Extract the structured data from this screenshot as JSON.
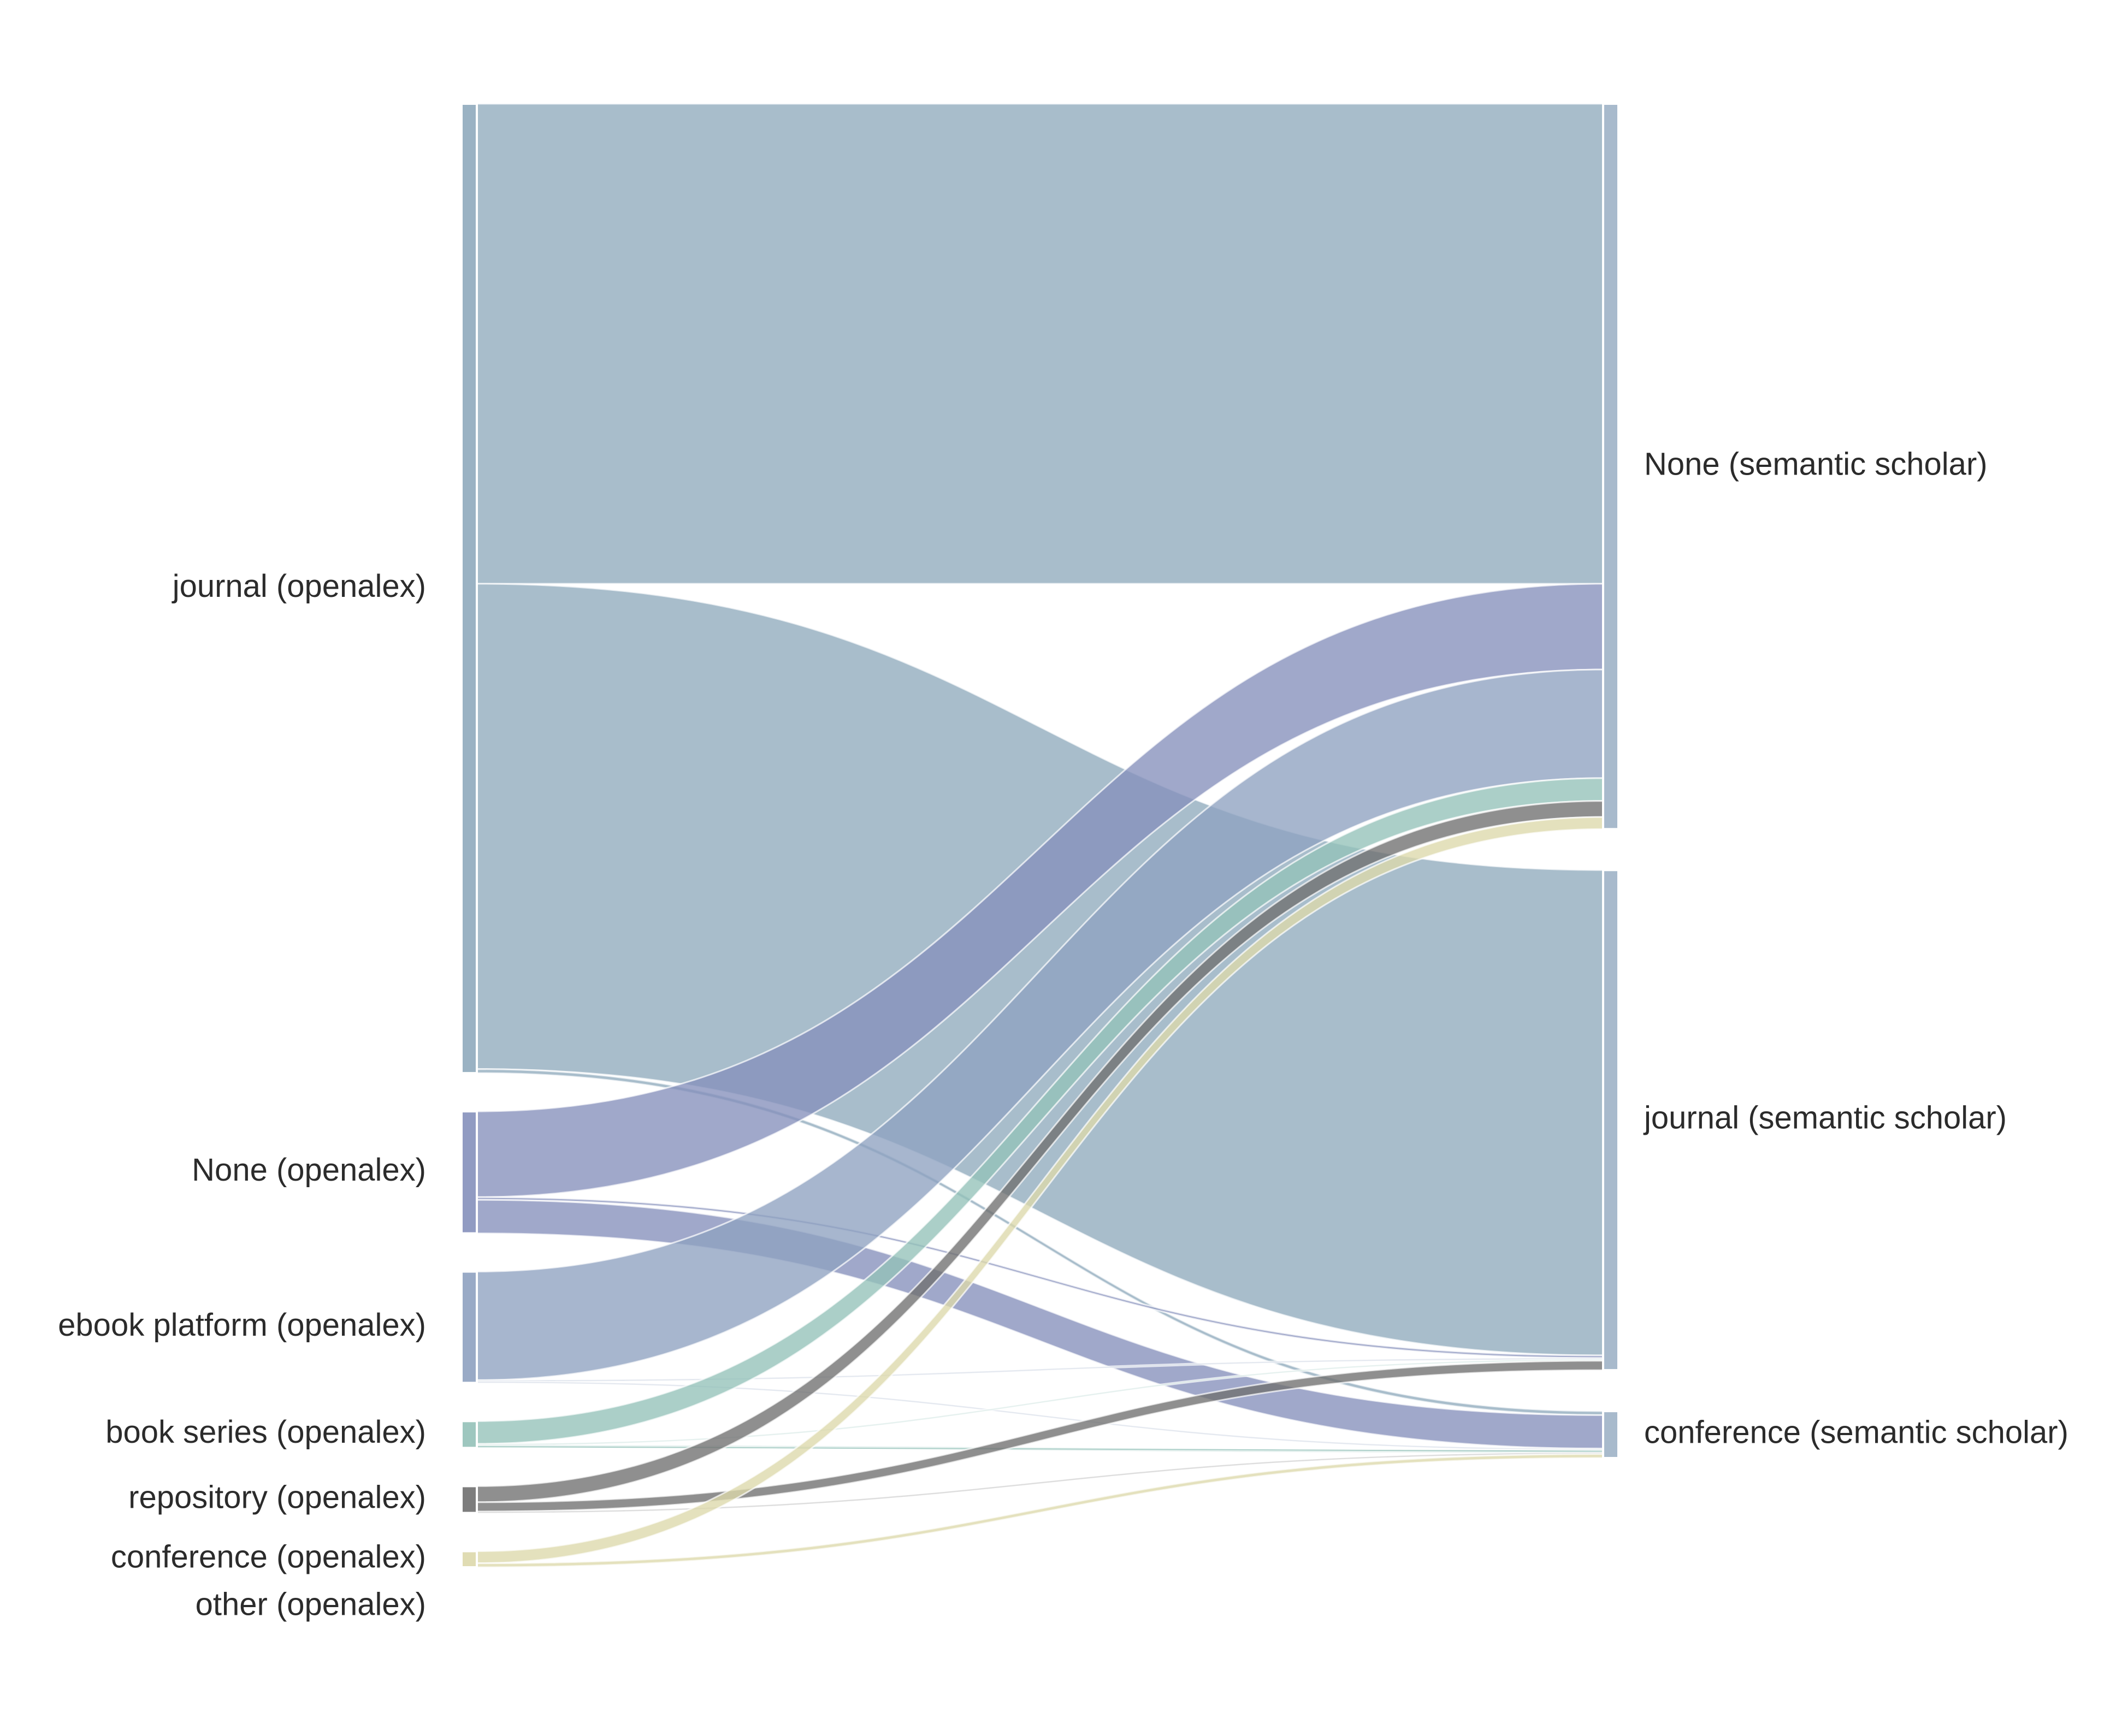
{
  "diagram": {
    "type": "sankey",
    "left_nodes": [
      {
        "id": "journal_oa",
        "label": "journal (openalex)"
      },
      {
        "id": "none_oa",
        "label": "None (openalex)"
      },
      {
        "id": "ebook_oa",
        "label": "ebook platform (openalex)"
      },
      {
        "id": "bookseries_oa",
        "label": "book series (openalex)"
      },
      {
        "id": "repository_oa",
        "label": "repository (openalex)"
      },
      {
        "id": "conference_oa",
        "label": "conference (openalex)"
      },
      {
        "id": "other_oa",
        "label": "other (openalex)"
      }
    ],
    "right_nodes": [
      {
        "id": "none_ss",
        "label": "None (semantic scholar)"
      },
      {
        "id": "journal_ss",
        "label": "journal (semantic scholar)"
      },
      {
        "id": "conference_ss",
        "label": "conference (semantic scholar)"
      }
    ],
    "colors": {
      "journal_oa": "#8faabc",
      "none_oa": "#8590bb",
      "ebook_oa": "#8ea1c0",
      "bookseries_oa": "#93c1b8",
      "repository_oa": "#6f6f6f",
      "conference_oa": "#ddd8ab",
      "other_oa": "#cdd6df"
    },
    "flows": [
      {
        "source": "journal_oa",
        "target": "none_ss",
        "value": 358
      },
      {
        "source": "journal_oa",
        "target": "journal_ss",
        "value": 362
      },
      {
        "source": "journal_oa",
        "target": "conference_ss",
        "value": 3
      },
      {
        "source": "none_oa",
        "target": "none_ss",
        "value": 64
      },
      {
        "source": "none_oa",
        "target": "journal_ss",
        "value": 2
      },
      {
        "source": "none_oa",
        "target": "conference_ss",
        "value": 25
      },
      {
        "source": "ebook_oa",
        "target": "none_ss",
        "value": 81
      },
      {
        "source": "ebook_oa",
        "target": "journal_ss",
        "value": 1
      },
      {
        "source": "ebook_oa",
        "target": "conference_ss",
        "value": 1
      },
      {
        "source": "bookseries_oa",
        "target": "none_ss",
        "value": 17
      },
      {
        "source": "bookseries_oa",
        "target": "journal_ss",
        "value": 1
      },
      {
        "source": "bookseries_oa",
        "target": "conference_ss",
        "value": 2
      },
      {
        "source": "repository_oa",
        "target": "none_ss",
        "value": 12
      },
      {
        "source": "repository_oa",
        "target": "journal_ss",
        "value": 7
      },
      {
        "source": "repository_oa",
        "target": "conference_ss",
        "value": 1
      },
      {
        "source": "conference_oa",
        "target": "none_ss",
        "value": 9
      },
      {
        "source": "conference_oa",
        "target": "conference_ss",
        "value": 3
      }
    ]
  }
}
